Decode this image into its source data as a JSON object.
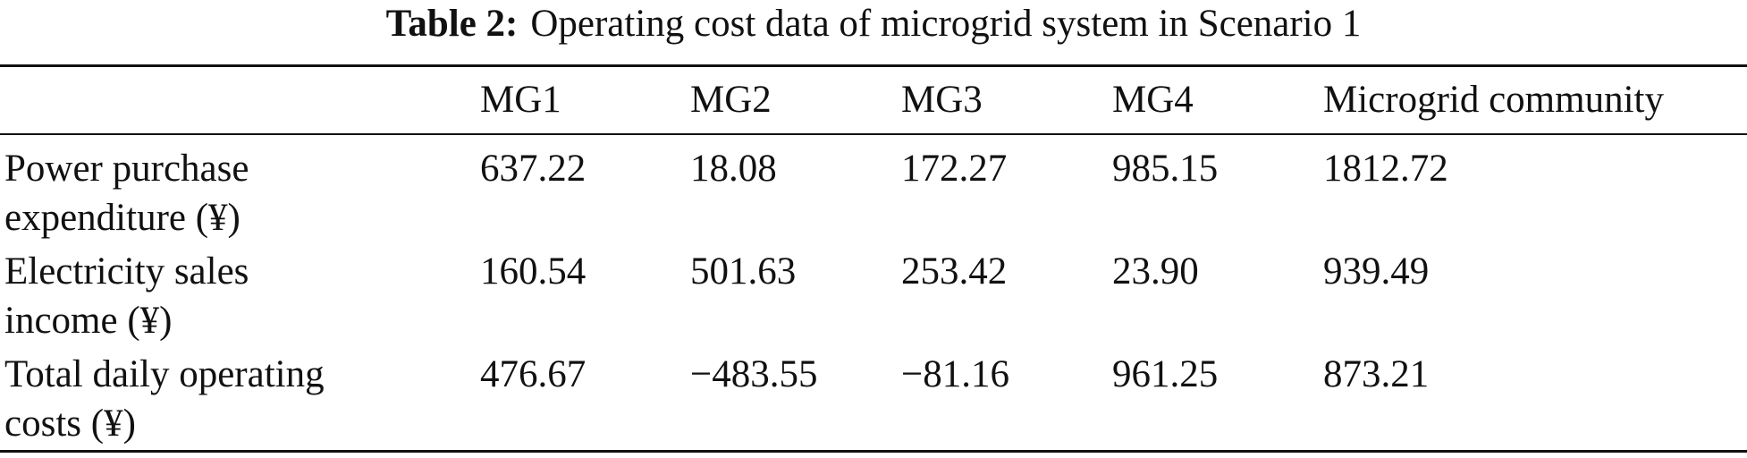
{
  "caption": {
    "label": "Table 2:",
    "text": "Operating cost data of microgrid system in Scenario 1"
  },
  "table": {
    "columns": [
      "",
      "MG1",
      "MG2",
      "MG3",
      "MG4",
      "Microgrid community"
    ],
    "rows": [
      {
        "label_line1": "Power purchase",
        "label_line2": "expenditure (¥)",
        "values": [
          "637.22",
          "18.08",
          "172.27",
          "985.15",
          "1812.72"
        ]
      },
      {
        "label_line1": "Electricity sales",
        "label_line2": "income (¥)",
        "values": [
          "160.54",
          "501.63",
          "253.42",
          "23.90",
          "939.49"
        ]
      },
      {
        "label_line1": "Total daily operating",
        "label_line2": "costs (¥)",
        "values": [
          "476.67",
          "−483.55",
          "−81.16",
          "961.25",
          "873.21"
        ]
      }
    ]
  }
}
